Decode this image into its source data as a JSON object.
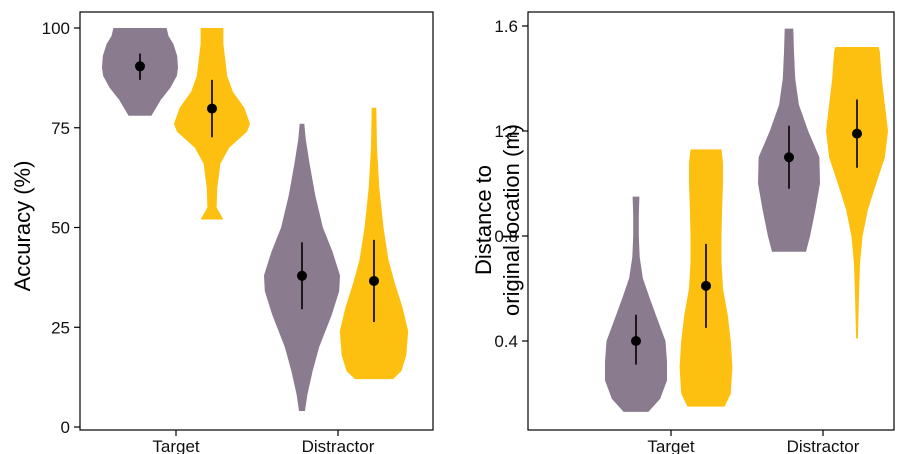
{
  "colors": {
    "groupA": "#8b7b8e",
    "groupB": "#fdc010"
  },
  "chart_data": [
    {
      "type": "violin",
      "ylabel": "Accuracy (%)",
      "ylim": [
        0,
        100
      ],
      "yticks": [
        0,
        25,
        50,
        75,
        100
      ],
      "yticklabels": [
        "0",
        "25",
        "50",
        "75",
        "100"
      ],
      "categories": [
        "Target",
        "Distractor"
      ],
      "violins": [
        {
          "category": "Target",
          "group": "A",
          "mean": 90.4,
          "err_lo": 87.0,
          "err_hi": 93.6,
          "profile": [
            [
              78,
              0.3
            ],
            [
              82,
              0.55
            ],
            [
              85,
              0.8
            ],
            [
              88,
              0.97
            ],
            [
              90,
              1.0
            ],
            [
              93,
              0.98
            ],
            [
              96,
              0.88
            ],
            [
              98,
              0.75
            ],
            [
              100,
              0.7
            ]
          ]
        },
        {
          "category": "Target",
          "group": "B",
          "mean": 79.8,
          "err_lo": 72.6,
          "err_hi": 87.0,
          "profile": [
            [
              52,
              0.3
            ],
            [
              55,
              0.12
            ],
            [
              60,
              0.14
            ],
            [
              66,
              0.22
            ],
            [
              70,
              0.45
            ],
            [
              74,
              0.92
            ],
            [
              76,
              1.0
            ],
            [
              80,
              0.85
            ],
            [
              84,
              0.55
            ],
            [
              88,
              0.4
            ],
            [
              92,
              0.35
            ],
            [
              96,
              0.3
            ],
            [
              100,
              0.3
            ]
          ]
        },
        {
          "category": "Distractor",
          "group": "A",
          "mean": 37.9,
          "err_lo": 29.5,
          "err_hi": 46.3,
          "profile": [
            [
              4,
              0.08
            ],
            [
              8,
              0.14
            ],
            [
              14,
              0.28
            ],
            [
              20,
              0.45
            ],
            [
              28,
              0.78
            ],
            [
              34,
              0.98
            ],
            [
              38,
              1.0
            ],
            [
              44,
              0.8
            ],
            [
              50,
              0.55
            ],
            [
              58,
              0.35
            ],
            [
              66,
              0.2
            ],
            [
              72,
              0.1
            ],
            [
              76,
              0.06
            ]
          ]
        },
        {
          "category": "Distractor",
          "group": "B",
          "mean": 36.6,
          "err_lo": 26.3,
          "err_hi": 46.9,
          "profile": [
            [
              12,
              0.5
            ],
            [
              14,
              0.72
            ],
            [
              18,
              0.85
            ],
            [
              24,
              0.9
            ],
            [
              30,
              0.75
            ],
            [
              36,
              0.55
            ],
            [
              42,
              0.38
            ],
            [
              50,
              0.25
            ],
            [
              60,
              0.14
            ],
            [
              70,
              0.08
            ],
            [
              80,
              0.06
            ]
          ]
        }
      ]
    },
    {
      "type": "violin",
      "ylabel": "Distance to original location (m)",
      "ylim": [
        0.1,
        1.6
      ],
      "yticks": [
        0.4,
        0.8,
        1.2,
        1.6
      ],
      "yticklabels": [
        "0.4",
        "0.8",
        "1.2",
        "1.6"
      ],
      "categories": [
        "Target",
        "Distractor"
      ],
      "violins": [
        {
          "category": "Target",
          "group": "A",
          "mean": 0.4,
          "err_lo": 0.31,
          "err_hi": 0.5,
          "profile": [
            [
              0.13,
              0.4
            ],
            [
              0.18,
              0.78
            ],
            [
              0.25,
              1.0
            ],
            [
              0.32,
              1.0
            ],
            [
              0.4,
              0.95
            ],
            [
              0.48,
              0.7
            ],
            [
              0.56,
              0.45
            ],
            [
              0.64,
              0.22
            ],
            [
              0.72,
              0.12
            ],
            [
              0.8,
              0.09
            ],
            [
              0.88,
              0.09
            ],
            [
              0.95,
              0.11
            ]
          ]
        },
        {
          "category": "Target",
          "group": "B",
          "mean": 0.61,
          "err_lo": 0.45,
          "err_hi": 0.77,
          "profile": [
            [
              0.15,
              0.6
            ],
            [
              0.2,
              0.8
            ],
            [
              0.3,
              0.85
            ],
            [
              0.4,
              0.8
            ],
            [
              0.5,
              0.7
            ],
            [
              0.6,
              0.55
            ],
            [
              0.7,
              0.5
            ],
            [
              0.8,
              0.5
            ],
            [
              0.9,
              0.52
            ],
            [
              1.0,
              0.55
            ],
            [
              1.08,
              0.55
            ],
            [
              1.13,
              0.5
            ]
          ]
        },
        {
          "category": "Distractor",
          "group": "A",
          "mean": 1.1,
          "err_lo": 0.98,
          "err_hi": 1.22,
          "profile": [
            [
              0.74,
              0.55
            ],
            [
              0.8,
              0.68
            ],
            [
              0.9,
              0.85
            ],
            [
              1.0,
              1.0
            ],
            [
              1.1,
              0.98
            ],
            [
              1.2,
              0.62
            ],
            [
              1.3,
              0.32
            ],
            [
              1.4,
              0.2
            ],
            [
              1.5,
              0.16
            ],
            [
              1.59,
              0.14
            ]
          ]
        },
        {
          "category": "Distractor",
          "group": "B",
          "mean": 1.19,
          "err_lo": 1.06,
          "err_hi": 1.32,
          "profile": [
            [
              0.41,
              0.03
            ],
            [
              0.5,
              0.05
            ],
            [
              0.6,
              0.07
            ],
            [
              0.7,
              0.1
            ],
            [
              0.8,
              0.18
            ],
            [
              0.9,
              0.35
            ],
            [
              1.0,
              0.62
            ],
            [
              1.1,
              0.9
            ],
            [
              1.2,
              1.0
            ],
            [
              1.3,
              0.9
            ],
            [
              1.4,
              0.8
            ],
            [
              1.5,
              0.74
            ],
            [
              1.52,
              0.7
            ]
          ]
        }
      ]
    }
  ]
}
